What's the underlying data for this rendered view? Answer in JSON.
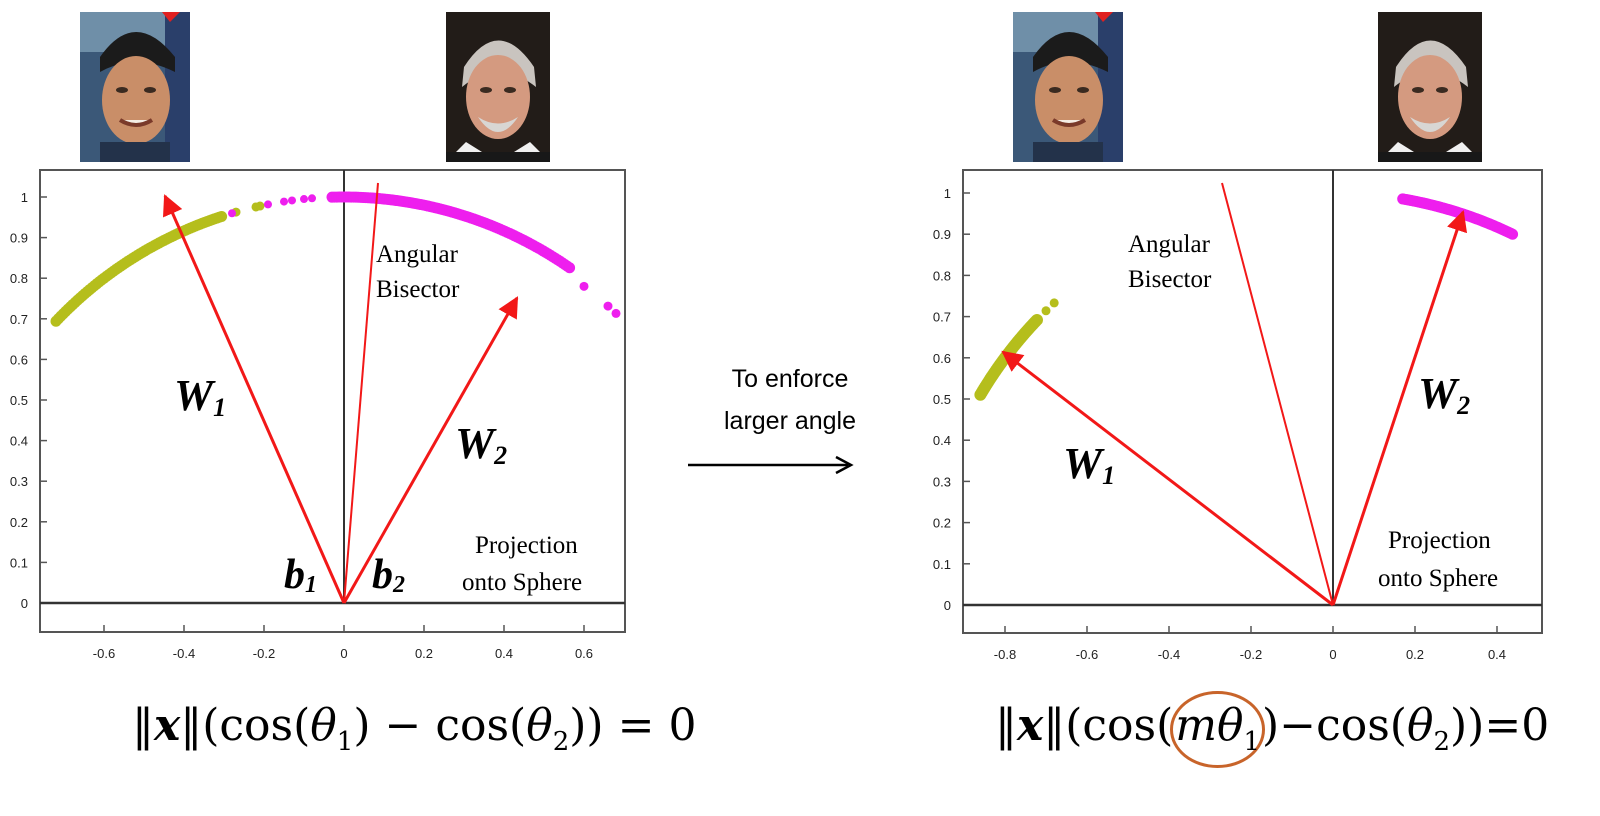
{
  "colors": {
    "class1_points": "#b5be1c",
    "class2_points": "#ee1fee",
    "vectors": "#f21818",
    "circle": "#c8642a"
  },
  "faces": [
    {
      "name": "face-photo-class1",
      "kind": "photo"
    },
    {
      "name": "face-photo-class2",
      "kind": "photo"
    }
  ],
  "left_plot": {
    "y_ticks": [
      "0",
      "0.1",
      "0.2",
      "0.3",
      "0.4",
      "0.5",
      "0.6",
      "0.7",
      "0.8",
      "0.9",
      "1"
    ],
    "x_ticks": [
      "-0.6",
      "-0.4",
      "-0.2",
      "0",
      "0.2",
      "0.4",
      "0.6"
    ],
    "labels": {
      "w1": "W",
      "w1_sub": "1",
      "w2": "W",
      "w2_sub": "2",
      "b1": "b",
      "b1_sub": "1",
      "b2": "b",
      "b2_sub": "2",
      "bisector_line1": "Angular",
      "bisector_line2": "Bisector",
      "projection_line1": "Projection",
      "projection_line2": "onto Sphere"
    },
    "formula": {
      "norm": "‖x‖",
      "text": "(cos(θ₁) − cos(θ₂)) = 0"
    }
  },
  "right_plot": {
    "y_ticks": [
      "0",
      "0.1",
      "0.2",
      "0.3",
      "0.4",
      "0.5",
      "0.6",
      "0.7",
      "0.8",
      "0.9",
      "1"
    ],
    "x_ticks": [
      "-0.8",
      "-0.6",
      "-0.4",
      "-0.2",
      "0",
      "0.2",
      "0.4"
    ],
    "labels": {
      "w1": "W",
      "w1_sub": "1",
      "w2": "W",
      "w2_sub": "2",
      "bisector_line1": "Angular",
      "bisector_line2": "Bisector",
      "projection_line1": "Projection",
      "projection_line2": "onto Sphere"
    },
    "formula": {
      "norm": "‖x‖",
      "text": "(cos(mθ₁) − cos(θ₂)) = 0",
      "highlighted": "mθ₁"
    }
  },
  "center_caption": {
    "line1": "To enforce",
    "line2": "larger angle"
  }
}
